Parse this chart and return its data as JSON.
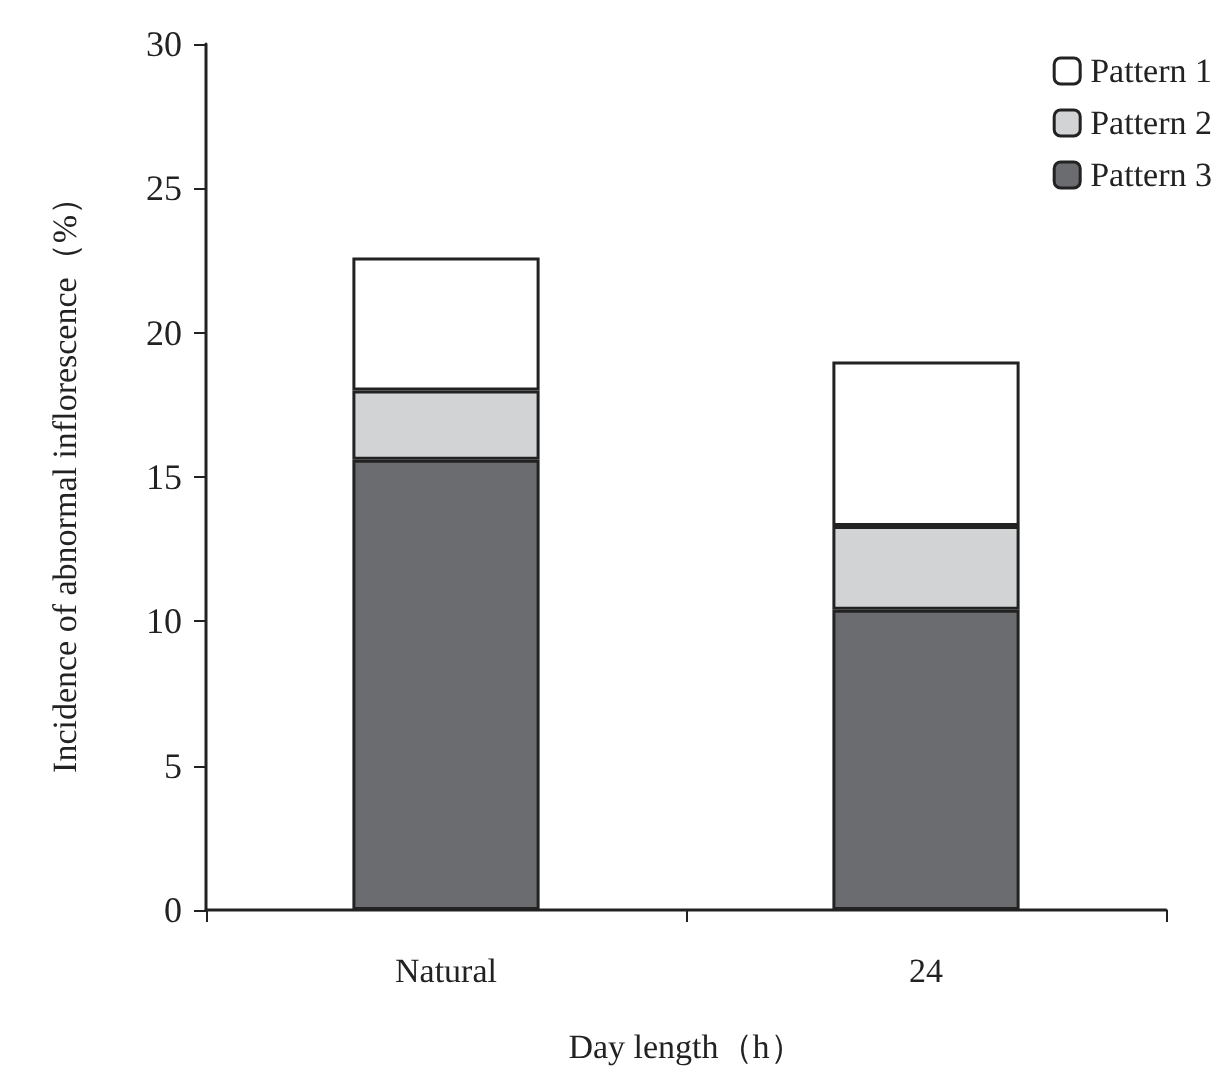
{
  "chart_data": {
    "type": "bar",
    "stacked": true,
    "xlabel": "Day length（h）",
    "ylabel": "Incidence of abnormal inflorescence（%）",
    "categories": [
      "Natural",
      "24"
    ],
    "series": [
      {
        "name": "Pattern 3",
        "color": "#6b6c70",
        "values": [
          15.6,
          10.4
        ]
      },
      {
        "name": "Pattern 2",
        "color": "#d2d3d5",
        "values": [
          2.4,
          2.9
        ]
      },
      {
        "name": "Pattern 1",
        "color": "#ffffff",
        "values": [
          4.6,
          5.7
        ]
      }
    ],
    "ylim": [
      0,
      30
    ],
    "yticks": [
      0,
      5,
      10,
      15,
      20,
      25,
      30
    ],
    "grid": false,
    "legend": "top right"
  }
}
